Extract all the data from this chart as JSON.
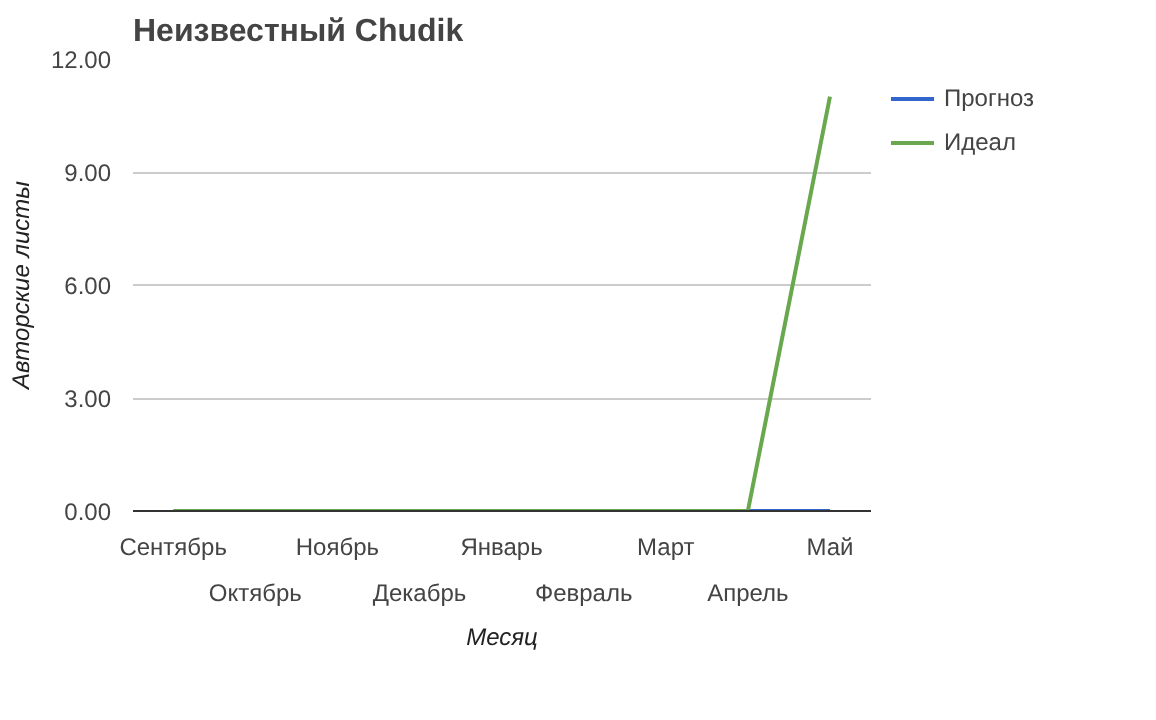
{
  "chart_data": {
    "type": "line",
    "title": "Неизвестный Chudik",
    "xlabel": "Месяц",
    "ylabel": "Авторские листы",
    "categories": [
      "Сентябрь",
      "Октябрь",
      "Ноябрь",
      "Декабрь",
      "Январь",
      "Февраль",
      "Март",
      "Апрель",
      "Май"
    ],
    "series": [
      {
        "name": "Прогноз",
        "color": "#3366cc",
        "values": [
          null,
          null,
          null,
          null,
          null,
          null,
          null,
          0,
          0
        ]
      },
      {
        "name": "Идеал",
        "color": "#6aa84f",
        "values": [
          0,
          0,
          0,
          0,
          0,
          0,
          0,
          0,
          11
        ]
      }
    ],
    "ylim": [
      0,
      12
    ],
    "yticks": [
      {
        "value": 0,
        "label": "0.00"
      },
      {
        "value": 3,
        "label": "3.00"
      },
      {
        "value": 6,
        "label": "6.00"
      },
      {
        "value": 9,
        "label": "9.00"
      },
      {
        "value": 12,
        "label": "12.00"
      }
    ],
    "grid": "y",
    "legend": "right",
    "marker": "none",
    "line_style": "solid"
  }
}
